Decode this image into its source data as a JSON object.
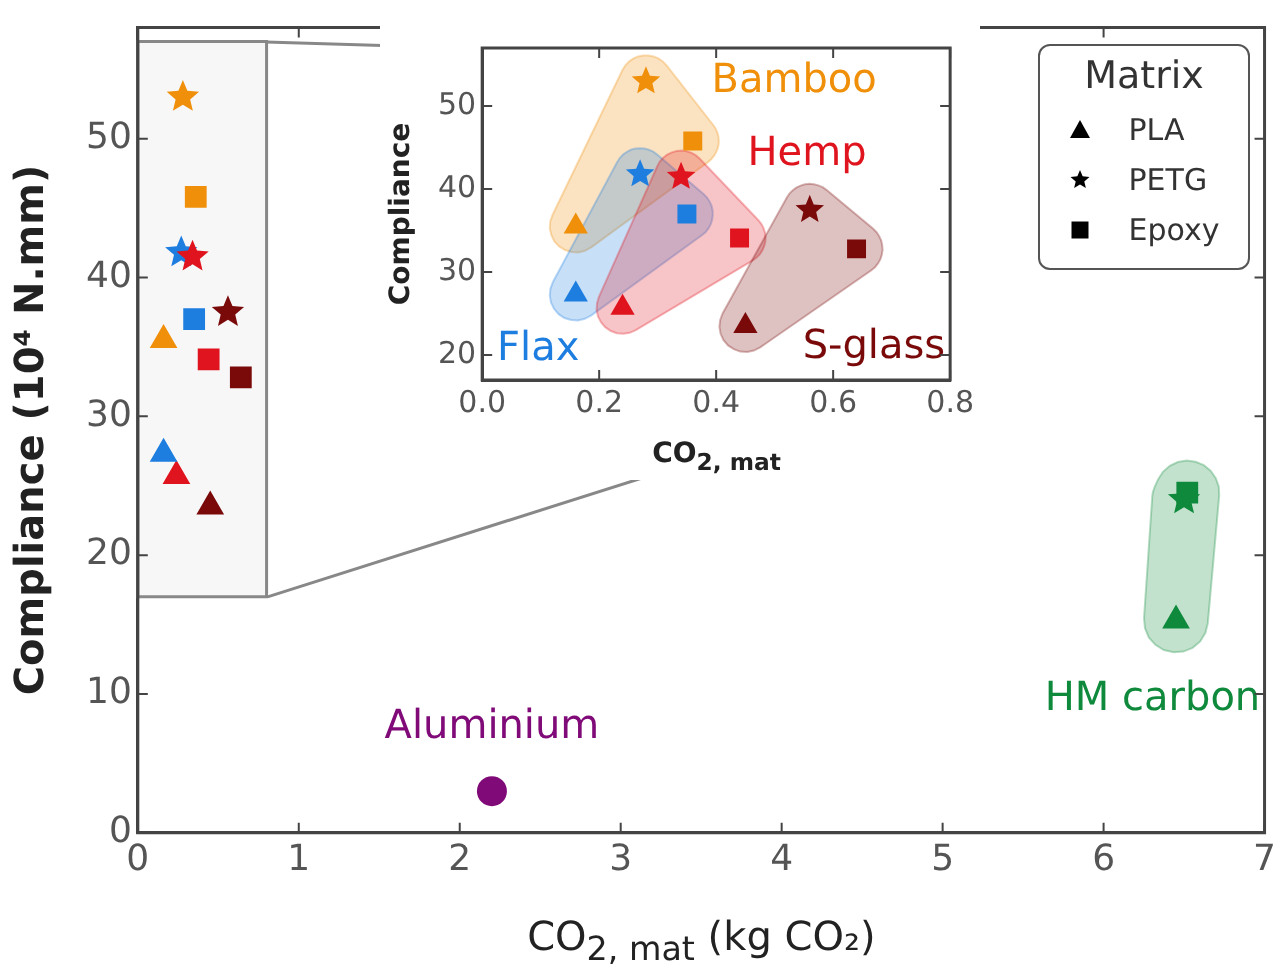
{
  "chart_data": [
    {
      "type": "scatter",
      "xlabel": "CO$_{2, mat}$ (kg CO₂)",
      "ylabel": "Compliance (10⁴ N.mm)",
      "legend_title": "Matrix",
      "xlim": [
        0,
        7
      ],
      "ylim": [
        0,
        58
      ],
      "xticks": [
        0,
        1,
        2,
        3,
        4,
        5,
        6,
        7
      ],
      "yticks": [
        0,
        10,
        20,
        30,
        40,
        50
      ],
      "series": [
        {
          "color": "#f0900a",
          "marker": "triangle",
          "x": [
            0.16
          ],
          "values": [
            35.5
          ]
        },
        {
          "color": "#f0900a",
          "marker": "star",
          "x": [
            0.28
          ],
          "values": [
            53
          ]
        },
        {
          "color": "#f0900a",
          "marker": "square",
          "x": [
            0.36
          ],
          "values": [
            45.8
          ]
        },
        {
          "color": "#1e7ee0",
          "marker": "triangle",
          "x": [
            0.16
          ],
          "values": [
            27.3
          ]
        },
        {
          "color": "#1e7ee0",
          "marker": "star",
          "x": [
            0.27
          ],
          "values": [
            41.8
          ]
        },
        {
          "color": "#1e7ee0",
          "marker": "square",
          "x": [
            0.35
          ],
          "values": [
            37
          ]
        },
        {
          "color": "#e0141e",
          "marker": "triangle",
          "x": [
            0.24
          ],
          "values": [
            25.7
          ]
        },
        {
          "color": "#e0141e",
          "marker": "star",
          "x": [
            0.34
          ],
          "values": [
            41.5
          ]
        },
        {
          "color": "#e0141e",
          "marker": "square",
          "x": [
            0.44
          ],
          "values": [
            34.1
          ]
        },
        {
          "color": "#7a0a0a",
          "marker": "triangle",
          "x": [
            0.45
          ],
          "values": [
            23.5
          ]
        },
        {
          "color": "#7a0a0a",
          "marker": "star",
          "x": [
            0.56
          ],
          "values": [
            37.5
          ]
        },
        {
          "color": "#7a0a0a",
          "marker": "square",
          "x": [
            0.64
          ],
          "values": [
            32.8
          ]
        },
        {
          "name": "HM carbon",
          "color": "#0f8a3c",
          "marker": "triangle",
          "x": [
            6.45
          ],
          "values": [
            15.3
          ]
        },
        {
          "color": "#0f8a3c",
          "marker": "star",
          "x": [
            6.5
          ],
          "values": [
            24
          ]
        },
        {
          "color": "#0f8a3c",
          "marker": "square",
          "x": [
            6.52
          ],
          "values": [
            24.5
          ]
        },
        {
          "name": "Aluminium",
          "color": "#800a78",
          "marker": "circle",
          "x": [
            2.2
          ],
          "values": [
            3
          ]
        }
      ],
      "annotations": [
        "PLA",
        "PETG",
        "Epoxy"
      ],
      "bands": [
        {
          "axis": "x",
          "from": 0,
          "to": 0.8,
          "color": "#888888"
        }
      ]
    },
    {
      "type": "scatter",
      "xlabel": "CO$_{2, mat}$",
      "ylabel": "Compliance",
      "xlim": [
        0,
        0.8
      ],
      "ylim": [
        17,
        57
      ],
      "xticks": [
        {
          "value": 0,
          "label": "0.0"
        },
        0.2,
        0.4,
        0.6,
        0.8
      ],
      "yticks": [
        20,
        30,
        40,
        50
      ],
      "series": [
        {
          "name": "Bamboo",
          "color": "#f0900a",
          "marker": "triangle",
          "x": [
            0.16
          ],
          "values": [
            35.5
          ]
        },
        {
          "color": "#f0900a",
          "marker": "star",
          "x": [
            0.28
          ],
          "values": [
            53
          ]
        },
        {
          "color": "#f0900a",
          "marker": "square",
          "x": [
            0.36
          ],
          "values": [
            45.8
          ]
        },
        {
          "name": "Flax",
          "color": "#1e7ee0",
          "marker": "triangle",
          "x": [
            0.16
          ],
          "values": [
            27.3
          ]
        },
        {
          "color": "#1e7ee0",
          "marker": "star",
          "x": [
            0.27
          ],
          "values": [
            41.8
          ]
        },
        {
          "color": "#1e7ee0",
          "marker": "square",
          "x": [
            0.35
          ],
          "values": [
            37
          ]
        },
        {
          "name": "Hemp",
          "color": "#e0141e",
          "marker": "triangle",
          "x": [
            0.24
          ],
          "values": [
            25.7
          ]
        },
        {
          "color": "#e0141e",
          "marker": "star",
          "x": [
            0.34
          ],
          "values": [
            41.5
          ]
        },
        {
          "color": "#e0141e",
          "marker": "square",
          "x": [
            0.44
          ],
          "values": [
            34.1
          ]
        },
        {
          "name": "S-glass",
          "color": "#7a0a0a",
          "marker": "triangle",
          "x": [
            0.45
          ],
          "values": [
            23.5
          ]
        },
        {
          "color": "#7a0a0a",
          "marker": "star",
          "x": [
            0.56
          ],
          "values": [
            37.5
          ]
        },
        {
          "color": "#7a0a0a",
          "marker": "square",
          "x": [
            0.64
          ],
          "values": [
            32.8
          ]
        }
      ]
    }
  ]
}
